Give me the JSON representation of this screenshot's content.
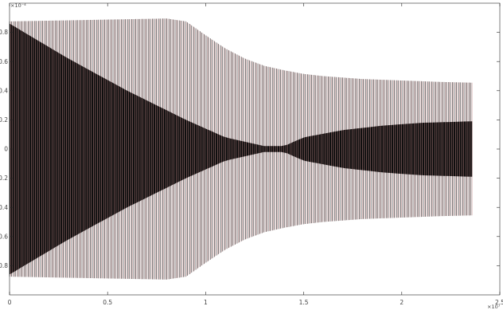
{
  "chart_data": {
    "type": "line",
    "title": "",
    "xlabel": "",
    "ylabel": "",
    "xlim": [
      0,
      2.5
    ],
    "ylim": [
      -1.0,
      1.0
    ],
    "x_exponent": "×10⁷",
    "y_exponent": "×10⁻⁴",
    "x_ticks": [
      "0",
      "0.5",
      "1",
      "1.5",
      "2",
      "2.5"
    ],
    "y_ticks": [
      "-0.8",
      "-0.6",
      "-0.4",
      "-0.2",
      "0",
      "0.2",
      "0.4",
      "0.6",
      "0.8"
    ],
    "grid": false,
    "legend": "none",
    "series": [
      {
        "color": "#000000",
        "x": [
          0,
          0.2,
          0.4,
          0.6,
          0.8,
          0.9,
          1.0,
          1.1,
          1.2,
          1.3,
          1.4,
          1.5,
          1.6,
          1.8,
          2.0,
          2.2,
          2.36
        ],
        "upper": [
          0.875,
          0.88,
          0.885,
          0.89,
          0.895,
          0.875,
          0.78,
          0.69,
          0.62,
          0.57,
          0.54,
          0.515,
          0.5,
          0.48,
          0.47,
          0.46,
          0.455
        ],
        "lower": [
          -0.875,
          -0.88,
          -0.885,
          -0.89,
          -0.895,
          -0.875,
          -0.78,
          -0.69,
          -0.62,
          -0.57,
          -0.54,
          -0.515,
          -0.5,
          -0.48,
          -0.47,
          -0.46,
          -0.455
        ],
        "dense_core_x": [
          0,
          0.3,
          0.6,
          0.9,
          1.1,
          1.3,
          1.4,
          1.5,
          1.7,
          1.9,
          2.1,
          2.36
        ],
        "dense_core_half_height": [
          0.86,
          0.62,
          0.4,
          0.2,
          0.08,
          0.02,
          0.02,
          0.08,
          0.13,
          0.16,
          0.18,
          0.19
        ]
      },
      {
        "color": "#c28888",
        "x": [
          0,
          0.2,
          0.4,
          0.6,
          0.8,
          0.9,
          1.0,
          1.1,
          1.2,
          1.3,
          1.4,
          1.5,
          1.6,
          1.8,
          2.0,
          2.2,
          2.36
        ],
        "upper": [
          0.875,
          0.88,
          0.885,
          0.89,
          0.895,
          0.875,
          0.78,
          0.69,
          0.62,
          0.57,
          0.54,
          0.515,
          0.5,
          0.48,
          0.47,
          0.46,
          0.455
        ],
        "lower": [
          -0.875,
          -0.88,
          -0.885,
          -0.89,
          -0.895,
          -0.875,
          -0.78,
          -0.69,
          -0.62,
          -0.57,
          -0.54,
          -0.515,
          -0.5,
          -0.48,
          -0.47,
          -0.46,
          -0.455
        ]
      }
    ]
  }
}
